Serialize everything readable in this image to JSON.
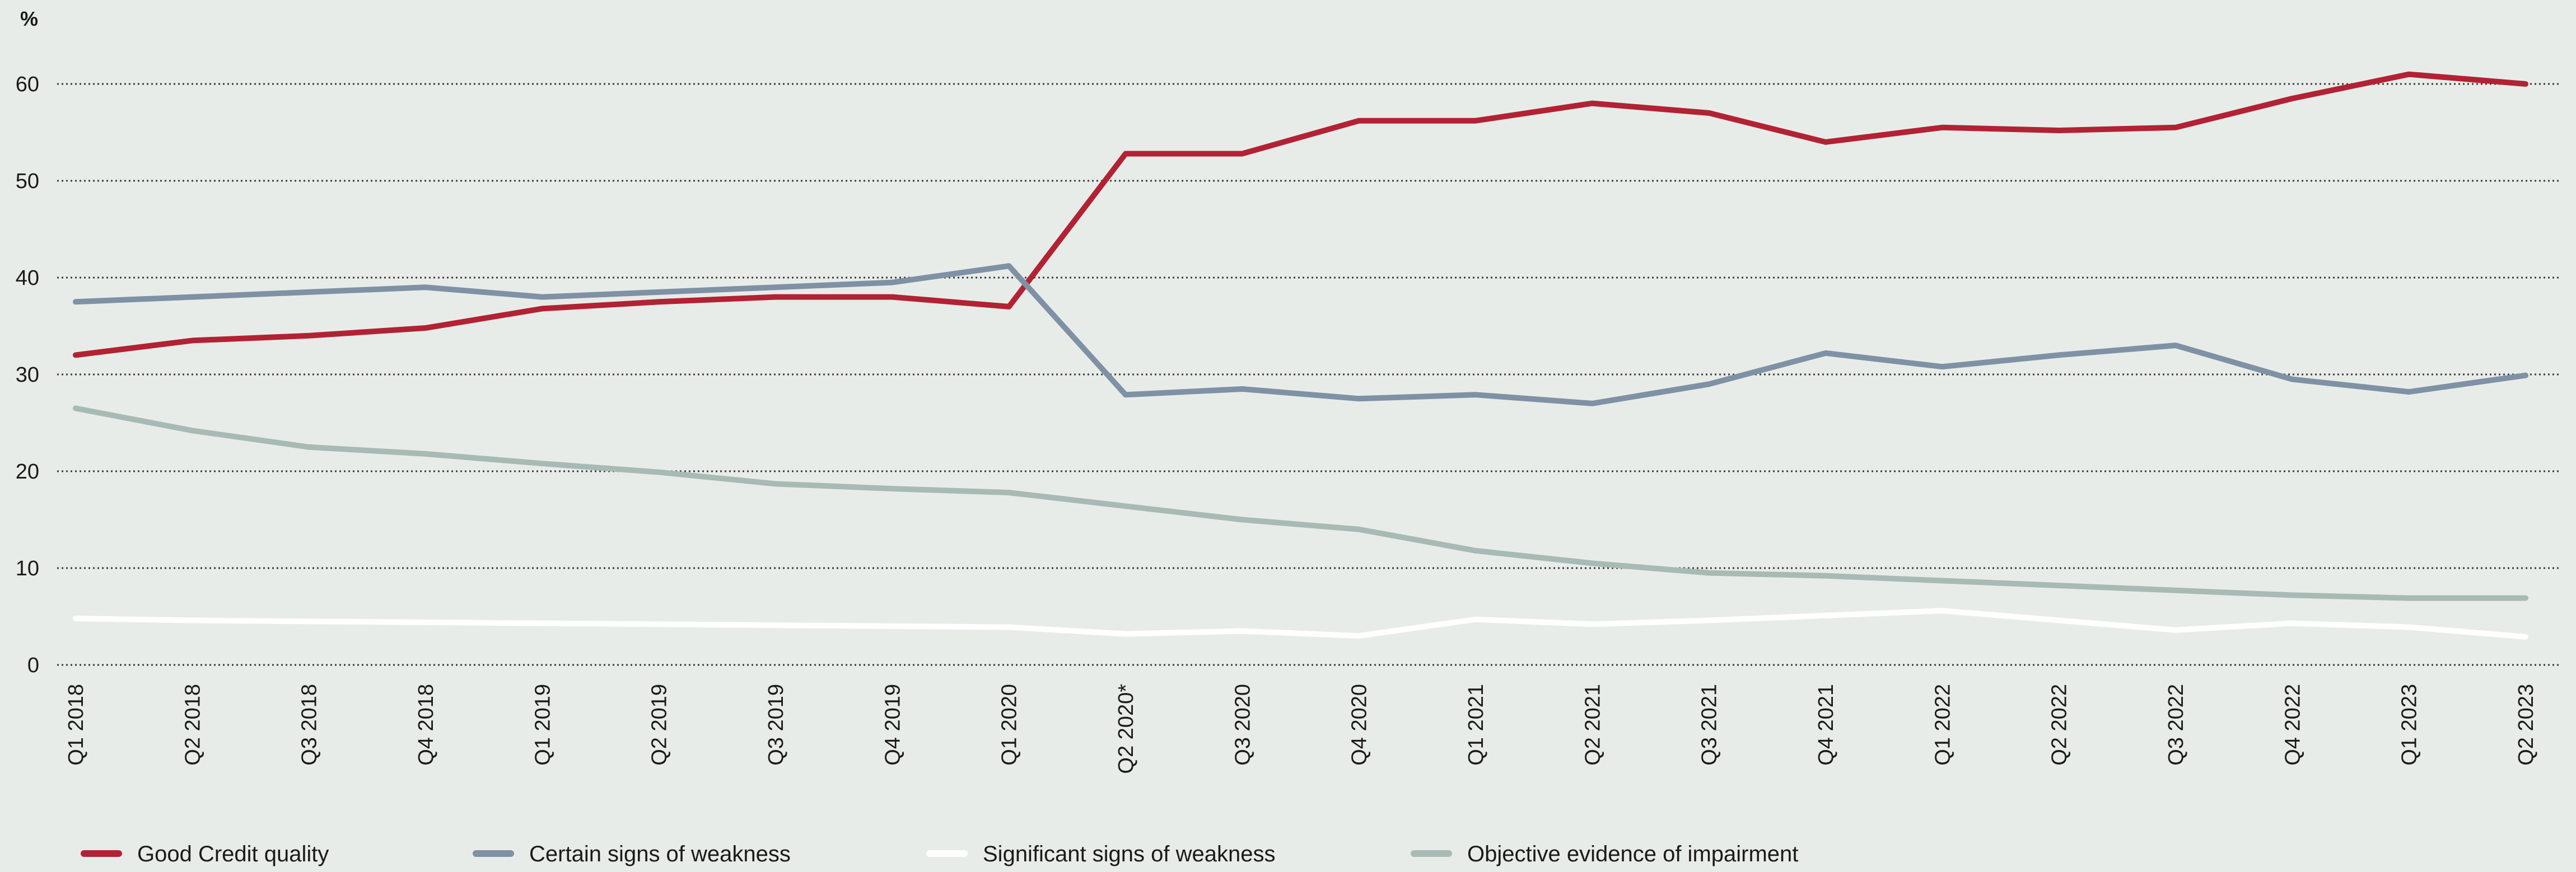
{
  "chart_data": {
    "type": "line",
    "ylabel": "%",
    "ylim": [
      0,
      60
    ],
    "yticks": [
      0,
      10,
      20,
      30,
      40,
      50,
      60
    ],
    "grid": true,
    "legend_position": "bottom",
    "categories": [
      "Q1 2018",
      "Q2 2018",
      "Q3 2018",
      "Q4 2018",
      "Q1 2019",
      "Q2 2019",
      "Q3 2019",
      "Q4 2019",
      "Q1 2020",
      "Q2 2020*",
      "Q3 2020",
      "Q4 2020",
      "Q1 2021",
      "Q2 2021",
      "Q3 2021",
      "Q4 2021",
      "Q1 2022",
      "Q2 2022",
      "Q3 2022",
      "Q4 2022",
      "Q1 2023",
      "Q2 2023"
    ],
    "series": [
      {
        "name": "Good Credit quality",
        "color": "#b22234",
        "values": [
          32,
          33.5,
          34,
          34.8,
          36.8,
          37.5,
          38,
          38,
          37,
          52.8,
          52.8,
          56.2,
          56.2,
          58,
          57,
          54,
          55.5,
          55.2,
          55.5,
          58.5,
          61,
          60
        ]
      },
      {
        "name": "Certain signs of weakness",
        "color": "#7f91a5",
        "values": [
          37.5,
          38,
          38.5,
          39,
          38,
          38.5,
          39,
          39.5,
          41.2,
          27.9,
          28.5,
          27.5,
          27.9,
          27,
          29,
          32.2,
          30.8,
          32,
          33,
          29.5,
          28.2,
          29.9
        ]
      },
      {
        "name": "Significant signs of weakness",
        "color": "#ffffff",
        "values": [
          4.8,
          4.6,
          4.5,
          4.4,
          4.3,
          4.2,
          4.1,
          4.0,
          3.9,
          3.2,
          3.5,
          3.0,
          4.7,
          4.2,
          4.6,
          5.1,
          5.6,
          4.6,
          3.6,
          4.3,
          3.9,
          2.9
        ]
      },
      {
        "name": "Objective evidence of impairment",
        "color": "#a8bab5",
        "values": [
          26.5,
          24.2,
          22.5,
          21.8,
          20.8,
          19.9,
          18.7,
          18.2,
          17.8,
          16.4,
          15.0,
          14.0,
          11.8,
          10.5,
          9.5,
          9.2,
          8.7,
          8.2,
          7.7,
          7.2,
          6.9,
          6.9
        ]
      }
    ]
  }
}
